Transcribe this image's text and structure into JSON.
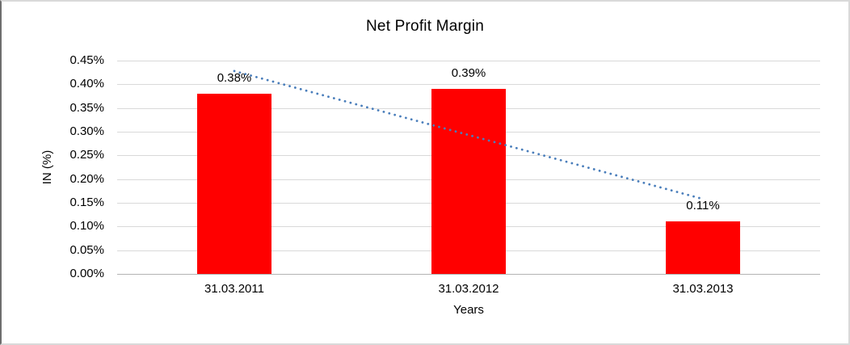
{
  "chart_data": {
    "type": "bar",
    "title": "Net Profit Margin",
    "xlabel": "Years",
    "ylabel": "IN (%)",
    "categories": [
      "31.03.2011",
      "31.03.2012",
      "31.03.2013"
    ],
    "values": [
      0.38,
      0.39,
      0.11
    ],
    "data_labels": [
      "0.38%",
      "0.39%",
      "0.11%"
    ],
    "y_ticks": [
      {
        "label": "0.45%",
        "value": 0.45
      },
      {
        "label": "0.40%",
        "value": 0.4
      },
      {
        "label": "0.35%",
        "value": 0.35
      },
      {
        "label": "0.30%",
        "value": 0.3
      },
      {
        "label": "0.25%",
        "value": 0.25
      },
      {
        "label": "0.20%",
        "value": 0.2
      },
      {
        "label": "0.15%",
        "value": 0.15
      },
      {
        "label": "0.10%",
        "value": 0.1
      },
      {
        "label": "0.05%",
        "value": 0.05
      },
      {
        "label": "0.00%",
        "value": 0.0
      }
    ],
    "ylim": [
      0,
      0.45
    ],
    "grid": true,
    "legend": "none",
    "bar_color": "#ff0000",
    "gridline_color": "#d9d9d9",
    "axis_line_color": "#b3b3b3",
    "text_color": "#000000",
    "trendline": {
      "type": "linear",
      "style": "dotted",
      "color": "#4a7ebb",
      "start_value": 0.428,
      "end_value": 0.158
    }
  }
}
